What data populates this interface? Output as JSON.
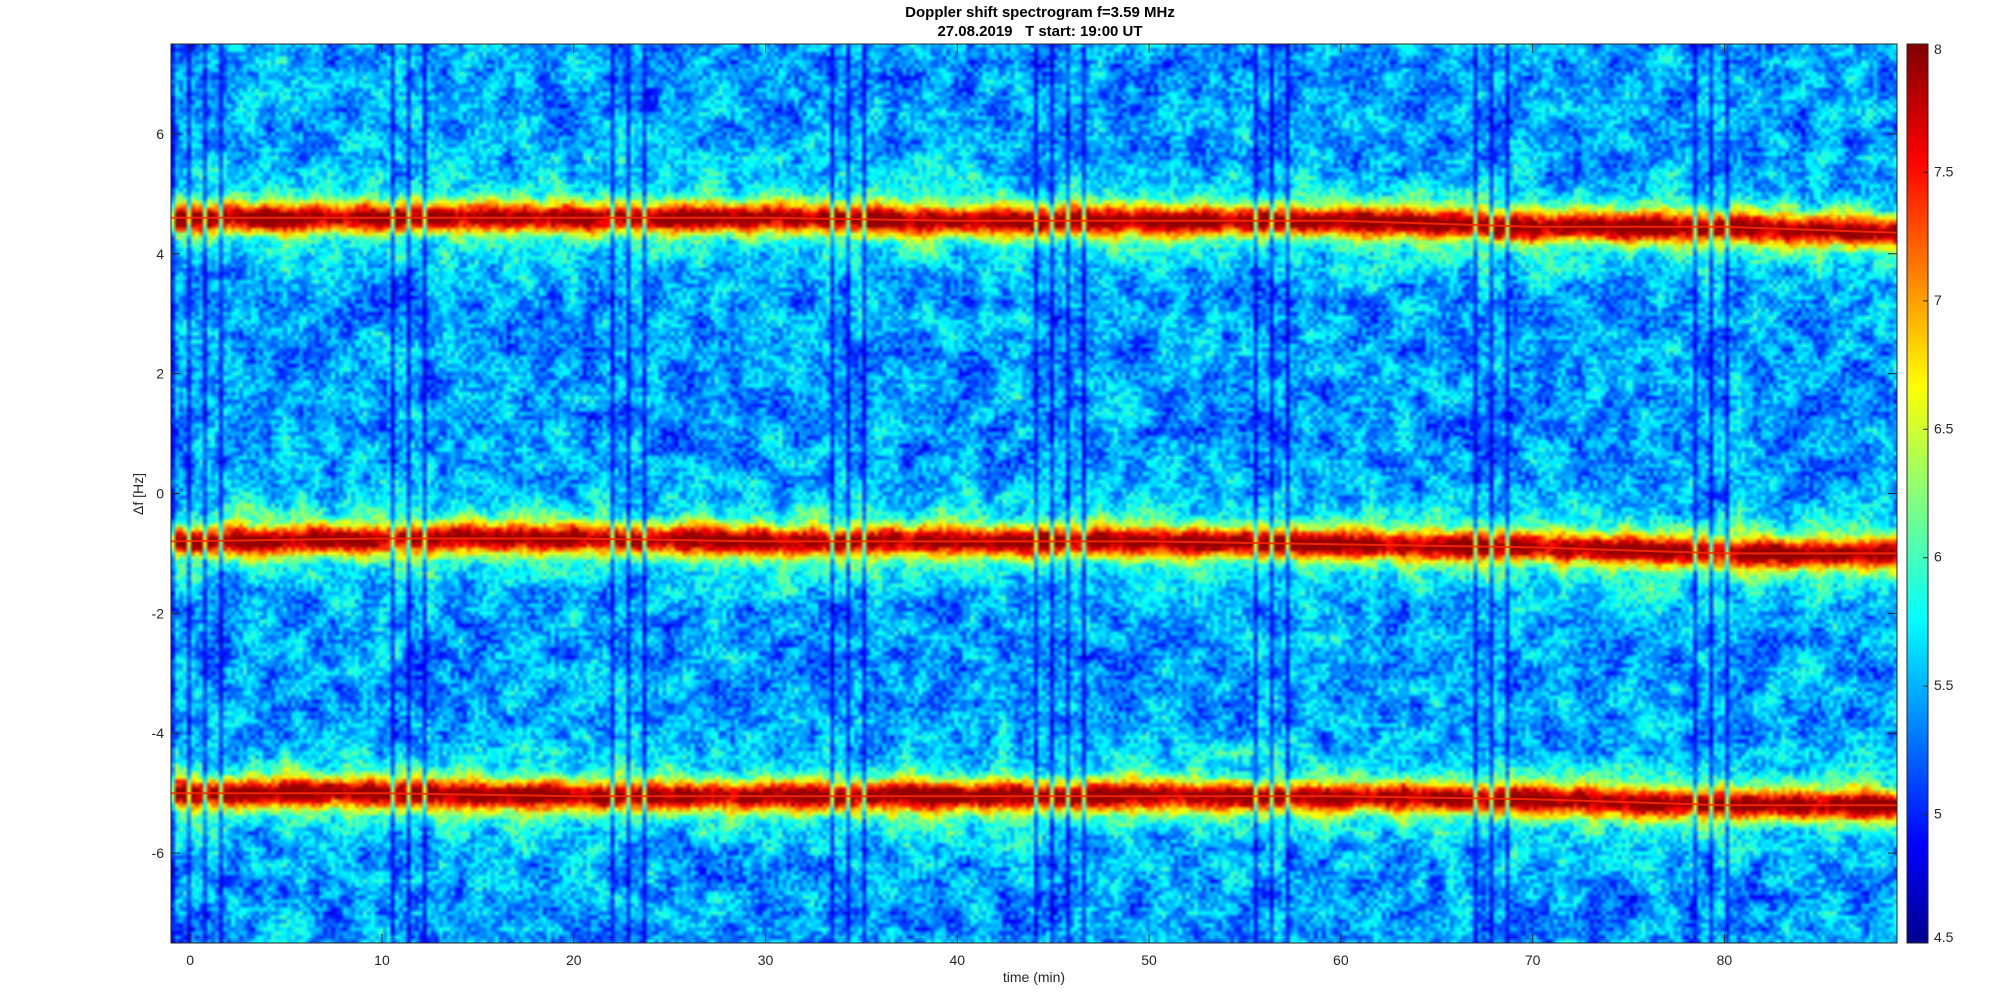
{
  "chart_data": {
    "type": "heatmap",
    "title": "Doppler shift spectrogram f=3.59 MHz",
    "subtitle": "27.08.2019   T start: 19:00 UT",
    "xlabel": "time (min)",
    "ylabel": "Δf [Hz]",
    "xlim": [
      -1,
      89
    ],
    "ylim": [
      -7.5,
      7.5
    ],
    "x_ticks": [
      0,
      10,
      20,
      30,
      40,
      50,
      60,
      70,
      80
    ],
    "y_ticks": [
      -6,
      -4,
      -2,
      0,
      2,
      4,
      6
    ],
    "colorbar": {
      "colormap": "jet",
      "clim": [
        4.5,
        8
      ],
      "ticks": [
        4.5,
        5,
        5.5,
        6,
        6.5,
        7,
        7.5,
        8
      ]
    },
    "traces": [
      {
        "x": [
          -1,
          10,
          20,
          30,
          40,
          50,
          60,
          70,
          80,
          89
        ],
        "y": [
          4.6,
          4.6,
          4.6,
          4.6,
          4.55,
          4.55,
          4.55,
          4.45,
          4.45,
          4.35
        ]
      },
      {
        "x": [
          -1,
          10,
          20,
          30,
          40,
          50,
          60,
          70,
          80,
          89
        ],
        "y": [
          -0.8,
          -0.75,
          -0.75,
          -0.8,
          -0.8,
          -0.8,
          -0.85,
          -0.9,
          -1.0,
          -1.0
        ]
      },
      {
        "x": [
          -1,
          10,
          20,
          30,
          40,
          50,
          60,
          70,
          80,
          89
        ],
        "y": [
          -5.0,
          -5.0,
          -5.05,
          -5.05,
          -5.05,
          -5.05,
          -5.05,
          -5.1,
          -5.2,
          -5.2
        ]
      }
    ],
    "grid": false,
    "legend": "none"
  }
}
